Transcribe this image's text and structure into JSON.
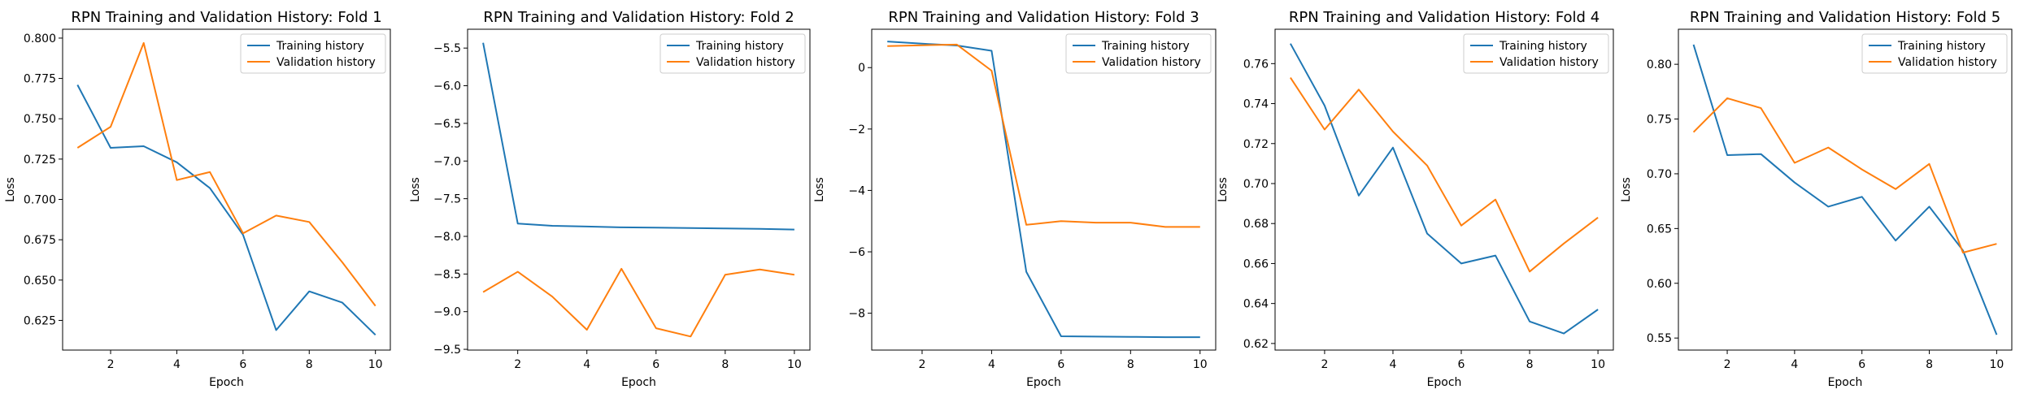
{
  "colors": {
    "training": "#1f77b4",
    "validation": "#ff7f0e"
  },
  "chart_data": [
    {
      "type": "line",
      "title": "RPN Training and Validation History: Fold 1",
      "xlabel": "Epoch",
      "ylabel": "Loss",
      "x": [
        1,
        2,
        3,
        4,
        5,
        6,
        7,
        8,
        9,
        10
      ],
      "xlim": [
        0.55,
        10.45
      ],
      "ylim": [
        0.6066,
        0.8055
      ],
      "xticks": [
        2,
        4,
        6,
        8,
        10
      ],
      "xtick_labels": [
        "2",
        "4",
        "6",
        "8",
        "10"
      ],
      "yticks": [
        0.625,
        0.65,
        0.675,
        0.7,
        0.725,
        0.75,
        0.775,
        0.8
      ],
      "ytick_labels": [
        "0.625",
        "0.650",
        "0.675",
        "0.700",
        "0.725",
        "0.750",
        "0.775",
        "0.800"
      ],
      "legend": "top-right",
      "grid": false,
      "series": [
        {
          "name": "Training history",
          "values": [
            0.771,
            0.732,
            0.733,
            0.723,
            0.707,
            0.678,
            0.619,
            0.643,
            0.636,
            0.616
          ]
        },
        {
          "name": "Validation history",
          "values": [
            0.732,
            0.745,
            0.797,
            0.712,
            0.717,
            0.679,
            0.69,
            0.686,
            0.661,
            0.634
          ]
        }
      ]
    },
    {
      "type": "line",
      "title": "RPN Training and Validation History: Fold 2",
      "xlabel": "Epoch",
      "ylabel": "Loss",
      "x": [
        1,
        2,
        3,
        4,
        5,
        6,
        7,
        8,
        9,
        10
      ],
      "xlim": [
        0.55,
        10.45
      ],
      "ylim": [
        -9.51,
        -5.25
      ],
      "xticks": [
        2,
        4,
        6,
        8,
        10
      ],
      "xtick_labels": [
        "2",
        "4",
        "6",
        "8",
        "10"
      ],
      "yticks": [
        -9.5,
        -9.0,
        -8.5,
        -8.0,
        -7.5,
        -7.0,
        -6.5,
        -6.0,
        -5.5
      ],
      "ytick_labels": [
        "−9.5",
        "−9.0",
        "−8.5",
        "−8.0",
        "−7.5",
        "−7.0",
        "−6.5",
        "−6.0",
        "−5.5"
      ],
      "legend": "top-right",
      "grid": false,
      "series": [
        {
          "name": "Training history",
          "values": [
            -5.43,
            -7.83,
            -7.86,
            -7.87,
            -7.88,
            -7.885,
            -7.89,
            -7.895,
            -7.9,
            -7.91
          ]
        },
        {
          "name": "Validation history",
          "values": [
            -8.74,
            -8.47,
            -8.8,
            -9.24,
            -8.43,
            -9.22,
            -9.33,
            -8.51,
            -8.44,
            -8.51
          ]
        }
      ]
    },
    {
      "type": "line",
      "title": "RPN Training and Validation History: Fold 3",
      "xlabel": "Epoch",
      "ylabel": "Loss",
      "x": [
        1,
        2,
        3,
        4,
        5,
        6,
        7,
        8,
        9,
        10
      ],
      "xlim": [
        0.55,
        10.45
      ],
      "ylim": [
        -9.2,
        1.25
      ],
      "xticks": [
        2,
        4,
        6,
        8,
        10
      ],
      "xtick_labels": [
        "2",
        "4",
        "6",
        "8",
        "10"
      ],
      "yticks": [
        -8,
        -6,
        -4,
        -2,
        0
      ],
      "ytick_labels": [
        "−8",
        "−6",
        "−4",
        "−2",
        "0"
      ],
      "legend": "top-right",
      "grid": false,
      "series": [
        {
          "name": "Training history",
          "values": [
            0.85,
            0.78,
            0.72,
            0.55,
            -6.65,
            -8.75,
            -8.76,
            -8.77,
            -8.78,
            -8.78
          ]
        },
        {
          "name": "Validation history",
          "values": [
            0.7,
            0.73,
            0.75,
            -0.1,
            -5.12,
            -5.0,
            -5.05,
            -5.05,
            -5.19,
            -5.19
          ]
        }
      ]
    },
    {
      "type": "line",
      "title": "RPN Training and Validation History: Fold 4",
      "xlabel": "Epoch",
      "ylabel": "Loss",
      "x": [
        1,
        2,
        3,
        4,
        5,
        6,
        7,
        8,
        9,
        10
      ],
      "xlim": [
        0.55,
        10.45
      ],
      "ylim": [
        0.6167,
        0.7772
      ],
      "xticks": [
        2,
        4,
        6,
        8,
        10
      ],
      "xtick_labels": [
        "2",
        "4",
        "6",
        "8",
        "10"
      ],
      "yticks": [
        0.62,
        0.64,
        0.66,
        0.68,
        0.7,
        0.72,
        0.74,
        0.76
      ],
      "ytick_labels": [
        "0.62",
        "0.64",
        "0.66",
        "0.68",
        "0.70",
        "0.72",
        "0.74",
        "0.76"
      ],
      "legend": "top-right",
      "grid": false,
      "series": [
        {
          "name": "Training history",
          "values": [
            0.77,
            0.739,
            0.694,
            0.718,
            0.675,
            0.66,
            0.664,
            0.631,
            0.625,
            0.637
          ]
        },
        {
          "name": "Validation history",
          "values": [
            0.753,
            0.727,
            0.747,
            0.726,
            0.709,
            0.679,
            0.692,
            0.656,
            0.67,
            0.683
          ]
        }
      ]
    },
    {
      "type": "line",
      "title": "RPN Training and Validation History: Fold 5",
      "xlabel": "Epoch",
      "ylabel": "Loss",
      "x": [
        1,
        2,
        3,
        4,
        5,
        6,
        7,
        8,
        9,
        10
      ],
      "xlim": [
        0.55,
        10.45
      ],
      "ylim": [
        0.539,
        0.832
      ],
      "xticks": [
        2,
        4,
        6,
        8,
        10
      ],
      "xtick_labels": [
        "2",
        "4",
        "6",
        "8",
        "10"
      ],
      "yticks": [
        0.55,
        0.6,
        0.65,
        0.7,
        0.75,
        0.8
      ],
      "ytick_labels": [
        "0.55",
        "0.60",
        "0.65",
        "0.70",
        "0.75",
        "0.80"
      ],
      "legend": "top-right",
      "grid": false,
      "series": [
        {
          "name": "Training history",
          "values": [
            0.818,
            0.717,
            0.718,
            0.692,
            0.67,
            0.679,
            0.639,
            0.67,
            0.63,
            0.553
          ]
        },
        {
          "name": "Validation history",
          "values": [
            0.738,
            0.769,
            0.76,
            0.71,
            0.724,
            0.704,
            0.686,
            0.709,
            0.628,
            0.636
          ]
        }
      ]
    }
  ]
}
